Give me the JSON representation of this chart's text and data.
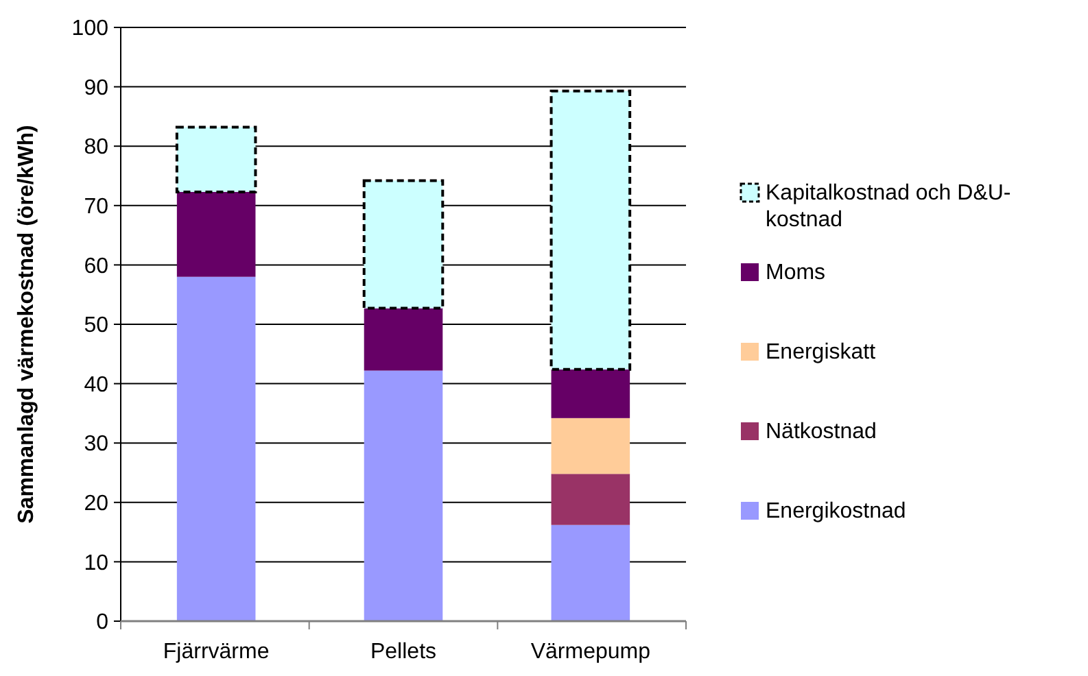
{
  "chart_data": {
    "type": "bar",
    "stacked": true,
    "ylabel": "Sammanlagd värmekostnad (öre/kWh)",
    "categories": [
      "Fjärrvärme",
      "Pellets",
      "Värmepump"
    ],
    "series": [
      {
        "name": "Energikostnad",
        "color": "#9999ff",
        "values": [
          58,
          42.2,
          16.2
        ]
      },
      {
        "name": "Nätkostnad",
        "color": "#993366",
        "values": [
          null,
          null,
          8.6
        ]
      },
      {
        "name": "Energiskatt",
        "color": "#ffcc99",
        "values": [
          null,
          null,
          9.4
        ]
      },
      {
        "name": "Moms",
        "color": "#660066",
        "values": [
          14.3,
          10.5,
          8.2
        ]
      },
      {
        "name": "Kapitalkostnad och D&U-kostnad",
        "color": "#ccffff",
        "values": [
          10.9,
          21.5,
          46.9
        ],
        "line_style": "dashed"
      }
    ],
    "ylim": [
      0,
      100
    ],
    "yticks": [
      0,
      10,
      20,
      30,
      40,
      50,
      60,
      70,
      80,
      90,
      100
    ],
    "grid": "y",
    "legend": "right"
  }
}
